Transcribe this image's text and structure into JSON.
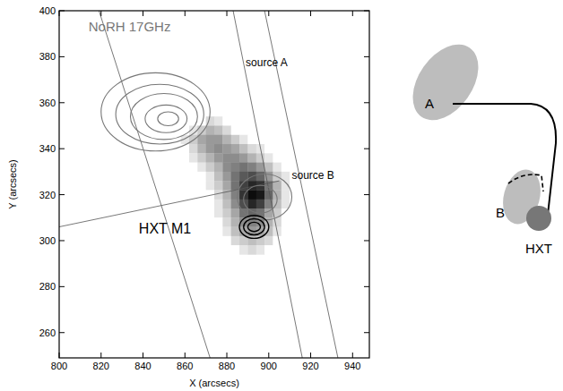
{
  "chart_data": {
    "type": "image",
    "xlabel": "X (arcsecs)",
    "ylabel": "Y (arcsecs)",
    "xlim": [
      800,
      948
    ],
    "ylim": [
      249,
      400
    ],
    "xticks": [
      800,
      820,
      840,
      860,
      880,
      900,
      920,
      940
    ],
    "yticks": [
      260,
      280,
      300,
      320,
      340,
      360,
      380,
      400
    ],
    "annotations": [
      "NoRH 17GHz",
      "source A",
      "source B",
      "HXT M1"
    ],
    "image": {
      "pixel_size": 4,
      "x0": 860,
      "rows": [
        {
          "y": 352,
          "values": [
            0,
            0,
            0,
            0.15,
            0.1,
            0,
            0,
            0,
            0,
            0,
            0,
            0,
            0,
            0
          ]
        },
        {
          "y": 348,
          "values": [
            0,
            0.1,
            0.2,
            0.3,
            0.25,
            0.15,
            0,
            0,
            0,
            0,
            0,
            0,
            0,
            0
          ]
        },
        {
          "y": 344,
          "values": [
            0.1,
            0.2,
            0.35,
            0.4,
            0.4,
            0.3,
            0.2,
            0.1,
            0,
            0,
            0,
            0,
            0,
            0
          ]
        },
        {
          "y": 340,
          "values": [
            0,
            0.15,
            0.3,
            0.4,
            0.45,
            0.4,
            0.35,
            0.25,
            0.15,
            0.1,
            0,
            0,
            0,
            0
          ]
        },
        {
          "y": 336,
          "values": [
            0,
            0.1,
            0.2,
            0.3,
            0.4,
            0.45,
            0.45,
            0.4,
            0.3,
            0.2,
            0.1,
            0,
            0,
            0
          ]
        },
        {
          "y": 332,
          "values": [
            0,
            0,
            0.1,
            0.2,
            0.3,
            0.45,
            0.5,
            0.55,
            0.5,
            0.4,
            0.25,
            0.1,
            0,
            0
          ]
        },
        {
          "y": 328,
          "values": [
            0,
            0,
            0,
            0.1,
            0.25,
            0.4,
            0.55,
            0.65,
            0.7,
            0.6,
            0.4,
            0.2,
            0.1,
            0
          ]
        },
        {
          "y": 324,
          "values": [
            0,
            0,
            0,
            0.1,
            0.2,
            0.35,
            0.55,
            0.75,
            0.85,
            0.8,
            0.55,
            0.3,
            0.1,
            0
          ]
        },
        {
          "y": 320,
          "values": [
            0,
            0,
            0,
            0,
            0.15,
            0.3,
            0.5,
            0.8,
            0.95,
            0.9,
            0.6,
            0.3,
            0.1,
            0
          ]
        },
        {
          "y": 316,
          "values": [
            0,
            0,
            0,
            0,
            0.1,
            0.25,
            0.45,
            0.7,
            0.85,
            0.75,
            0.5,
            0.25,
            0.1,
            0
          ]
        },
        {
          "y": 312,
          "values": [
            0,
            0,
            0,
            0,
            0.1,
            0.2,
            0.35,
            0.55,
            0.6,
            0.55,
            0.35,
            0.2,
            0,
            0
          ]
        },
        {
          "y": 308,
          "values": [
            0,
            0,
            0,
            0,
            0,
            0.15,
            0.3,
            0.45,
            0.5,
            0.45,
            0.3,
            0.15,
            0,
            0
          ]
        },
        {
          "y": 304,
          "values": [
            0,
            0,
            0,
            0,
            0,
            0.1,
            0.25,
            0.35,
            0.4,
            0.35,
            0.25,
            0.1,
            0,
            0
          ]
        },
        {
          "y": 300,
          "values": [
            0,
            0,
            0,
            0,
            0,
            0,
            0.15,
            0.2,
            0.25,
            0.2,
            0.15,
            0,
            0,
            0
          ]
        },
        {
          "y": 296,
          "values": [
            0,
            0,
            0,
            0,
            0,
            0,
            0,
            0.1,
            0.15,
            0.1,
            0,
            0,
            0,
            0
          ]
        }
      ]
    },
    "grid_lines": [
      [
        [
          819,
          400
        ],
        [
          872,
          249
        ]
      ],
      [
        [
          883,
          400
        ],
        [
          916,
          249
        ]
      ],
      [
        [
          898,
          400
        ],
        [
          933,
          249
        ]
      ],
      [
        [
          800,
          306
        ],
        [
          905,
          326
        ]
      ]
    ],
    "contours": [
      {
        "name": "NoRH 17GHz",
        "color": "#777777",
        "levels": [
          {
            "cx": 846,
            "cy": 356,
            "rx": 26,
            "ry": 17
          },
          {
            "cx": 848,
            "cy": 355,
            "rx": 21,
            "ry": 13
          },
          {
            "cx": 850,
            "cy": 354,
            "rx": 16,
            "ry": 10
          },
          {
            "cx": 851,
            "cy": 353,
            "rx": 10,
            "ry": 6
          },
          {
            "cx": 852,
            "cy": 353,
            "rx": 5,
            "ry": 3
          }
        ]
      },
      {
        "name": "source B",
        "color": "#777777",
        "levels": [
          {
            "cx": 898,
            "cy": 319,
            "rx": 13,
            "ry": 10
          },
          {
            "cx": 896,
            "cy": 318,
            "rx": 8,
            "ry": 6
          }
        ]
      },
      {
        "name": "HXT M1",
        "color": "#000000",
        "levels": [
          {
            "cx": 893,
            "cy": 306,
            "rx": 7,
            "ry": 5
          },
          {
            "cx": 893,
            "cy": 306,
            "rx": 5,
            "ry": 3.5
          },
          {
            "cx": 893,
            "cy": 306,
            "rx": 3,
            "ry": 2
          }
        ]
      }
    ],
    "schematic": {
      "labels": [
        "A",
        "B",
        "HXT"
      ]
    }
  }
}
